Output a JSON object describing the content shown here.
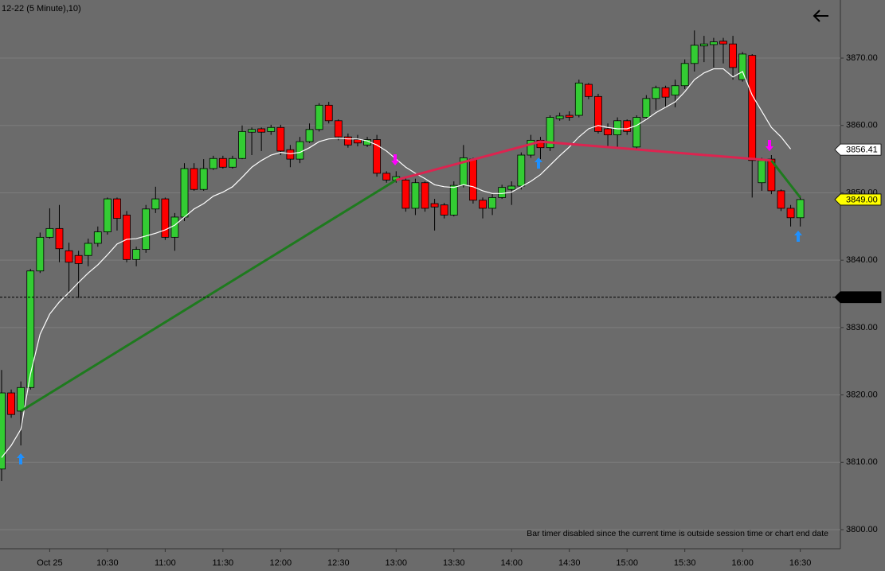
{
  "chart_data": {
    "type": "candlestick",
    "title": "12-22 (5 Minute),10)",
    "note": "Bar timer disabled since the current time is outside session time or chart end date",
    "categories": [
      null,
      null,
      null,
      null,
      null,
      "Oct 25",
      null,
      null,
      null,
      null,
      null,
      "10:30",
      null,
      null,
      null,
      null,
      null,
      "11:00",
      null,
      null,
      null,
      null,
      null,
      "11:30",
      null,
      null,
      null,
      null,
      null,
      "12:00",
      null,
      null,
      null,
      null,
      null,
      "12:30",
      null,
      null,
      null,
      null,
      null,
      "13:00",
      null,
      null,
      null,
      null,
      null,
      "13:30",
      null,
      null,
      null,
      null,
      null,
      "14:00",
      null,
      null,
      null,
      null,
      null,
      "14:30",
      null,
      null,
      null,
      null,
      null,
      "15:00",
      null,
      null,
      null,
      null,
      null,
      "15:30",
      null,
      null,
      null,
      null,
      null,
      "16:00",
      null,
      null,
      null,
      null,
      null,
      "16:30"
    ],
    "open": [
      3809.0,
      3820.3,
      3817.6,
      3821.1,
      3838.4,
      3843.4,
      3844.7,
      3841.4,
      3840.7,
      3840.7,
      3842.5,
      3844.2,
      3849.1,
      3846.7,
      3840.1,
      3841.6,
      3847.6,
      3849.1,
      3843.4,
      3846.4,
      3853.6,
      3850.5,
      3853.6,
      3855.1,
      3853.8,
      3855.1,
      3859.0,
      3859.5,
      3859.1,
      3859.7,
      3856.4,
      3855.0,
      3857.6,
      3859.4,
      3863.0,
      3860.7,
      3858.3,
      3857.9,
      3857.1,
      3857.9,
      3852.9,
      3851.9,
      3851.9,
      3847.7,
      3851.5,
      3848.4,
      3848.2,
      3846.7,
      3851.1,
      3855.0,
      3848.9,
      3847.7,
      3849.3,
      3850.5,
      3851.0,
      3855.6,
      3857.8,
      3856.7,
      3861.0,
      3861.5,
      3861.5,
      3866.1,
      3864.3,
      3859.5,
      3858.6,
      3860.7,
      3856.8,
      3861.2,
      3864.0,
      3865.6,
      3864.5,
      3865.9,
      3869.2,
      3871.8,
      3872.0,
      3872.5,
      3872.1,
      3866.8,
      3870.4,
      3851.5,
      3855.0,
      3850.3,
      3847.7,
      3846.3
    ],
    "high": [
      3823.7,
      3820.8,
      3822.0,
      3838.7,
      3844.1,
      3847.7,
      3848.2,
      3842.6,
      3841.4,
      3843.2,
      3845.0,
      3849.3,
      3849.3,
      3847.3,
      3842.0,
      3848.2,
      3850.9,
      3849.3,
      3847.0,
      3854.4,
      3854.4,
      3855.0,
      3855.5,
      3855.5,
      3855.5,
      3860.0,
      3859.7,
      3859.7,
      3860.1,
      3860.1,
      3857.1,
      3858.3,
      3860.3,
      3863.3,
      3863.5,
      3860.9,
      3858.8,
      3858.6,
      3858.3,
      3858.6,
      3853.2,
      3853.2,
      3852.4,
      3852.1,
      3851.7,
      3849.1,
      3848.5,
      3851.7,
      3857.1,
      3855.2,
      3849.3,
      3849.8,
      3851.2,
      3851.7,
      3856.0,
      3858.6,
      3858.3,
      3861.5,
      3861.9,
      3862.1,
      3866.8,
      3866.3,
      3864.7,
      3860.3,
      3861.2,
      3860.9,
      3861.5,
      3864.5,
      3865.9,
      3865.9,
      3866.8,
      3869.8,
      3874.1,
      3873.3,
      3873.0,
      3873.0,
      3873.3,
      3870.9,
      3870.6,
      3855.2,
      3855.6,
      3850.5,
      3848.2,
      3849.6
    ],
    "low": [
      3807.2,
      3816.6,
      3812.5,
      3820.8,
      3838.1,
      3843.2,
      3839.7,
      3834.9,
      3834.4,
      3839.1,
      3842.0,
      3843.8,
      3844.4,
      3839.7,
      3839.1,
      3841.1,
      3847.0,
      3843.0,
      3841.4,
      3845.8,
      3850.3,
      3850.3,
      3853.4,
      3853.6,
      3853.6,
      3855.0,
      3855.6,
      3856.2,
      3858.6,
      3855.6,
      3853.8,
      3854.4,
      3857.4,
      3859.1,
      3860.3,
      3857.8,
      3856.7,
      3856.9,
      3856.8,
      3852.4,
      3851.5,
      3851.5,
      3847.2,
      3846.7,
      3847.2,
      3844.4,
      3846.2,
      3846.5,
      3850.8,
      3848.4,
      3846.2,
      3846.7,
      3849.1,
      3848.2,
      3850.5,
      3855.2,
      3855.0,
      3856.2,
      3860.7,
      3860.7,
      3861.2,
      3863.9,
      3858.8,
      3856.8,
      3856.6,
      3858.6,
      3856.4,
      3860.9,
      3862.3,
      3862.7,
      3862.7,
      3865.4,
      3868.0,
      3869.4,
      3868.6,
      3869.2,
      3866.8,
      3866.5,
      3849.3,
      3850.3,
      3849.8,
      3847.3,
      3845.0,
      3845.0
    ],
    "close": [
      3820.3,
      3817.1,
      3821.1,
      3838.4,
      3843.4,
      3844.7,
      3841.7,
      3839.7,
      3839.5,
      3842.5,
      3844.2,
      3849.1,
      3846.2,
      3840.1,
      3841.6,
      3847.6,
      3849.1,
      3843.4,
      3846.4,
      3853.6,
      3850.5,
      3853.6,
      3855.1,
      3853.8,
      3855.1,
      3859.1,
      3859.4,
      3859.0,
      3859.7,
      3856.2,
      3855.0,
      3857.6,
      3859.4,
      3863.0,
      3860.7,
      3858.3,
      3857.1,
      3857.4,
      3857.9,
      3852.9,
      3851.9,
      3852.4,
      3847.7,
      3851.5,
      3847.7,
      3847.9,
      3846.7,
      3851.1,
      3855.2,
      3848.9,
      3847.7,
      3849.3,
      3850.8,
      3851.0,
      3855.6,
      3857.8,
      3856.7,
      3861.2,
      3861.4,
      3861.2,
      3866.3,
      3864.3,
      3859.1,
      3858.6,
      3860.7,
      3859.1,
      3861.2,
      3864.0,
      3865.6,
      3864.2,
      3865.9,
      3869.2,
      3871.9,
      3872.1,
      3872.4,
      3872.1,
      3868.6,
      3870.6,
      3854.8,
      3854.8,
      3850.3,
      3847.7,
      3846.3,
      3849.0
    ],
    "up_color": "#33cc33",
    "down_color": "#ff0000",
    "moving_average": {
      "color": "#ffffff",
      "values": [
        3810.7,
        3812.5,
        3814.9,
        3823.1,
        3829.0,
        3832.0,
        3833.8,
        3835.2,
        3836.7,
        3838.1,
        3839.3,
        3840.8,
        3842.4,
        3843.1,
        3843.2,
        3843.6,
        3844.0,
        3844.5,
        3845.2,
        3846.4,
        3847.6,
        3848.4,
        3849.5,
        3850.1,
        3850.9,
        3852.3,
        3853.8,
        3854.8,
        3855.6,
        3856.0,
        3855.8,
        3856.0,
        3856.7,
        3857.6,
        3858.0,
        3858.1,
        3858.0,
        3858.0,
        3857.7,
        3857.1,
        3856.2,
        3855.0,
        3853.8,
        3852.9,
        3852.1,
        3851.2,
        3850.9,
        3850.8,
        3851.2,
        3850.9,
        3850.3,
        3849.9,
        3849.9,
        3850.1,
        3850.9,
        3851.7,
        3852.7,
        3854.1,
        3855.5,
        3856.8,
        3858.3,
        3859.5,
        3860.0,
        3859.7,
        3859.5,
        3859.5,
        3860.0,
        3860.9,
        3861.9,
        3862.7,
        3863.5,
        3865.0,
        3866.8,
        3867.8,
        3868.4,
        3868.4,
        3867.2,
        3868.0,
        3864.5,
        3862.1,
        3859.7,
        3858.3,
        3856.5,
        null
      ]
    },
    "zigzag": [
      {
        "color": "#1e7a1e",
        "points": [
          {
            "x": 2,
            "value": 3817.6
          },
          {
            "x": 41,
            "value": 3851.9
          }
        ]
      },
      {
        "color": "#dc2450",
        "points": [
          {
            "x": 41,
            "value": 3851.9
          },
          {
            "x": 56,
            "value": 3857.6
          },
          {
            "x": 80,
            "value": 3854.8
          }
        ]
      },
      {
        "color": "#1e7a1e",
        "points": [
          {
            "x": 80,
            "value": 3854.8
          },
          {
            "x": 83,
            "value": 3849.3
          }
        ]
      }
    ],
    "price_markers": [
      {
        "value": 3856.41,
        "background": "#ffffff",
        "color": "#000000",
        "line": false
      },
      {
        "value": {
          "value": 3849,
          "label": "3849.00"
        },
        "background": "#ffff00",
        "color": "#000000",
        "line": false
      },
      {
        "value": {
          "value": 3834.5,
          "label": "3834.50"
        },
        "background": "#000000",
        "color": "#ffffff",
        "line": true
      }
    ],
    "ylim": [
      3797.17,
      3878.62
    ],
    "yticks": [
      {
        "value": 3800,
        "label": "3800.00"
      },
      {
        "value": 3810,
        "label": "3810.00"
      },
      {
        "value": 3820,
        "label": "3820.00"
      },
      {
        "value": 3830,
        "label": "3830.00"
      },
      {
        "value": 3840,
        "label": "3840.00"
      },
      {
        "value": 3850,
        "label": "3850.00"
      },
      {
        "value": 3860,
        "label": "3860.00"
      },
      {
        "value": 3870,
        "label": "3870.00"
      }
    ],
    "grid": true
  }
}
